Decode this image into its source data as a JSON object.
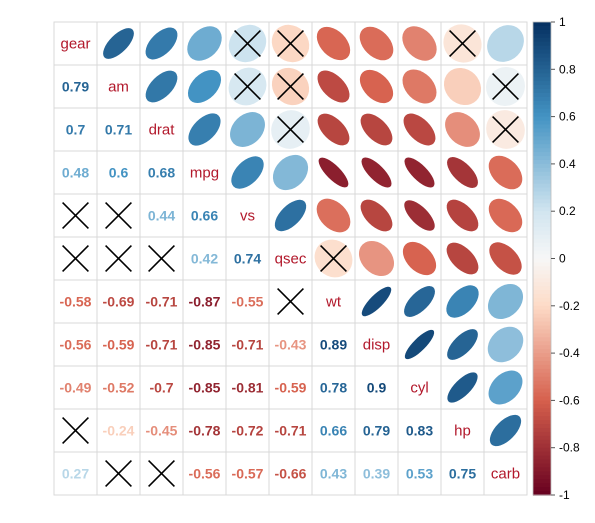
{
  "chart_data": {
    "type": "heatmap",
    "method": "correlation matrix, mixed: numbers in lower triangle, ellipses in upper triangle",
    "variables": [
      "gear",
      "am",
      "drat",
      "mpg",
      "vs",
      "qsec",
      "wt",
      "disp",
      "cyl",
      "hp",
      "carb"
    ],
    "lower_labels": [
      [],
      [
        "0.79"
      ],
      [
        "0.7",
        "0.71"
      ],
      [
        "0.48",
        "0.6",
        "0.68"
      ],
      [
        null,
        null,
        "0.44",
        "0.66"
      ],
      [
        null,
        null,
        null,
        "0.42",
        "0.74"
      ],
      [
        "-0.58",
        "-0.69",
        "-0.71",
        "-0.87",
        "-0.55",
        null
      ],
      [
        "-0.56",
        "-0.59",
        "-0.71",
        "-0.85",
        "-0.71",
        "-0.43",
        "0.89"
      ],
      [
        "-0.49",
        "-0.52",
        "-0.7",
        "-0.85",
        "-0.81",
        "-0.59",
        "0.78",
        "0.9"
      ],
      [
        null,
        "-0.24",
        "-0.45",
        "-0.78",
        "-0.72",
        "-0.71",
        "0.66",
        "0.79",
        "0.83"
      ],
      [
        "0.27",
        null,
        null,
        "-0.56",
        "-0.57",
        "-0.66",
        "0.43",
        "0.39",
        "0.53",
        "0.75"
      ]
    ],
    "matrix": [
      [
        1,
        0.79,
        0.7,
        0.48,
        0.21,
        -0.21,
        -0.58,
        -0.56,
        -0.49,
        -0.13,
        0.27
      ],
      [
        0.79,
        1,
        0.71,
        0.6,
        0.17,
        -0.23,
        -0.69,
        -0.59,
        -0.52,
        -0.24,
        0.06
      ],
      [
        0.7,
        0.71,
        1,
        0.68,
        0.44,
        0.09,
        -0.71,
        -0.71,
        -0.7,
        -0.45,
        -0.09
      ],
      [
        0.48,
        0.6,
        0.68,
        1,
        0.66,
        0.42,
        -0.87,
        -0.85,
        -0.85,
        -0.78,
        -0.56
      ],
      [
        0.21,
        0.17,
        0.44,
        0.66,
        1,
        0.74,
        -0.55,
        -0.71,
        -0.81,
        -0.72,
        -0.57
      ],
      [
        -0.21,
        -0.23,
        0.09,
        0.42,
        0.74,
        1,
        -0.17,
        -0.43,
        -0.59,
        -0.71,
        -0.66
      ],
      [
        -0.58,
        -0.69,
        -0.71,
        -0.87,
        -0.55,
        -0.17,
        1,
        0.89,
        0.78,
        0.66,
        0.43
      ],
      [
        -0.56,
        -0.59,
        -0.71,
        -0.85,
        -0.71,
        -0.43,
        0.89,
        1,
        0.9,
        0.79,
        0.39
      ],
      [
        -0.49,
        -0.52,
        -0.7,
        -0.85,
        -0.81,
        -0.59,
        0.78,
        0.9,
        1,
        0.83,
        0.53
      ],
      [
        -0.13,
        -0.24,
        -0.45,
        -0.78,
        -0.72,
        -0.71,
        0.66,
        0.79,
        0.83,
        1,
        0.75
      ],
      [
        0.27,
        0.06,
        -0.09,
        -0.56,
        -0.57,
        -0.66,
        0.43,
        0.39,
        0.53,
        0.75,
        1
      ]
    ],
    "insignificant_marked": [
      [
        0,
        4
      ],
      [
        0,
        5
      ],
      [
        0,
        9
      ],
      [
        1,
        4
      ],
      [
        1,
        5
      ],
      [
        1,
        10
      ],
      [
        2,
        5
      ],
      [
        2,
        10
      ],
      [
        5,
        6
      ]
    ],
    "insignificant_marker": "cross",
    "colorbar": {
      "range": [
        -1,
        1
      ],
      "ticks": [
        "1",
        "0.8",
        "0.6",
        "0.4",
        "0.2",
        "0",
        "-0.2",
        "-0.4",
        "-0.6",
        "-0.8",
        "-1"
      ],
      "placement": "right"
    },
    "colors": {
      "negative_strong": "#67001f",
      "negative_mid": "#d6604d",
      "negative_light": "#fddbc7",
      "neutral": "#f7f7f7",
      "positive_light": "#d1e5f0",
      "positive_mid": "#4393c3",
      "positive_strong": "#053061",
      "diag_label": "#b2182b",
      "grid": "#d9d9d9",
      "cross": "#000000"
    },
    "grid": true,
    "legend": "colorbar right"
  }
}
